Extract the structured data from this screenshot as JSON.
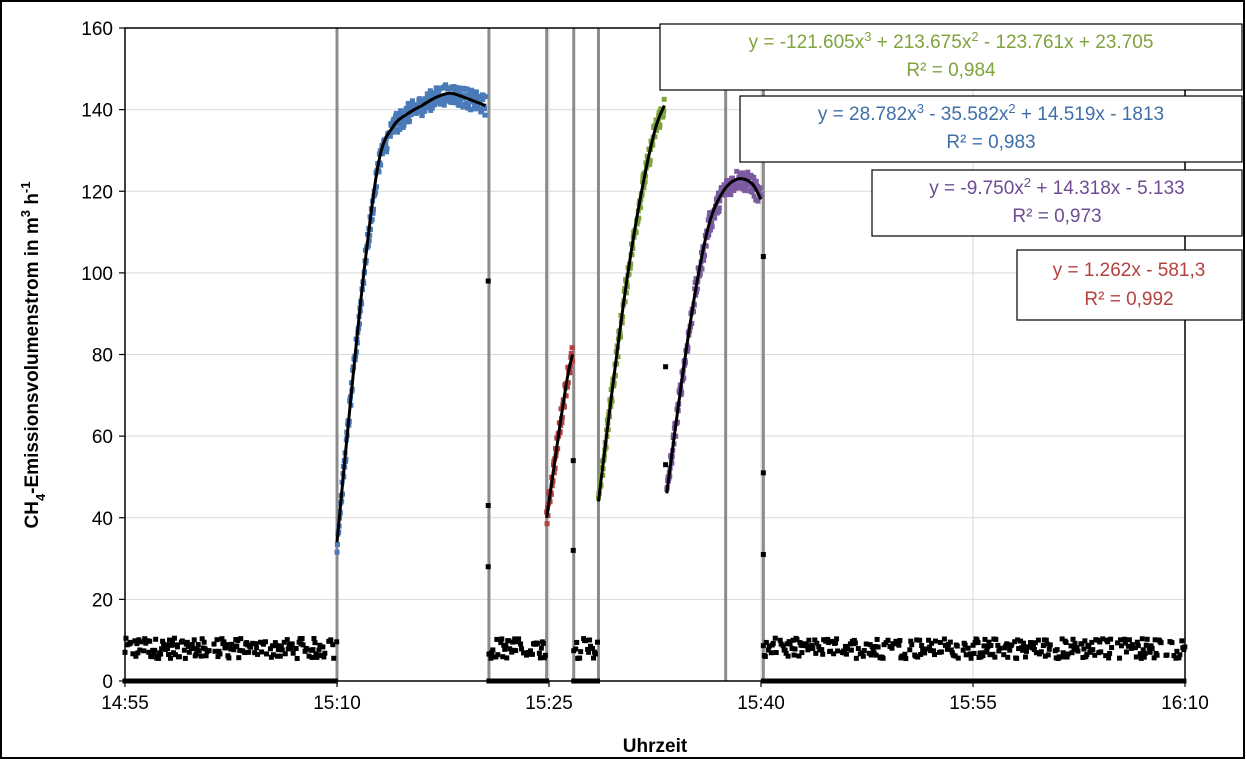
{
  "chart_data": {
    "type": "scatter",
    "title": "",
    "xlabel": "Uhrzeit",
    "ylabel_main": "CH",
    "ylabel_sub": "4",
    "ylabel_rest": "-Emissionsvolumenstrom in m",
    "ylabel_sup1": "3",
    "ylabel_h": " h",
    "ylabel_sup2": "-1",
    "x_range": [
      "14:55",
      "16:10"
    ],
    "ylim": [
      0,
      160
    ],
    "x_ticks": [
      "14:55",
      "15:10",
      "15:25",
      "15:40",
      "15:55",
      "16:10"
    ],
    "y_ticks": [
      0,
      20,
      40,
      60,
      80,
      100,
      120,
      140,
      160
    ],
    "grid": true,
    "legend": "none",
    "vertical_markers": [
      "15:10",
      "15:20:45",
      "15:24:50",
      "15:26:45",
      "15:28:30",
      "15:37:30",
      "15:40:10"
    ],
    "baseline_segments": [
      {
        "from": "14:55",
        "to": "15:10",
        "level": 8
      },
      {
        "from": "15:20:45",
        "to": "15:24:50",
        "level": 8
      },
      {
        "from": "15:26:45",
        "to": "15:28:30",
        "level": 8
      },
      {
        "from": "15:40:10",
        "to": "16:10",
        "level": 8
      }
    ],
    "series": [
      {
        "color": "#4a7ab8",
        "range": [
          "15:10",
          "15:20:40"
        ],
        "points": [
          [
            "15:10",
            34
          ],
          [
            "15:11",
            70
          ],
          [
            "15:12",
            103
          ],
          [
            "15:13",
            128
          ],
          [
            "15:14",
            136
          ],
          [
            "15:15",
            139
          ],
          [
            "15:16",
            141
          ],
          [
            "15:17",
            143
          ],
          [
            "15:18",
            144
          ],
          [
            "15:19",
            143
          ],
          [
            "15:20:30",
            141
          ]
        ]
      },
      {
        "color": "#b5403e",
        "range": [
          "15:24:50",
          "15:26:40"
        ],
        "points": [
          [
            "15:24:50",
            40
          ],
          [
            "15:25:20",
            52
          ],
          [
            "15:25:50",
            64
          ],
          [
            "15:26:20",
            75
          ],
          [
            "15:26:40",
            80
          ]
        ]
      },
      {
        "color": "#7fa33d",
        "range": [
          "15:28:30",
          "15:33:10"
        ],
        "points": [
          [
            "15:28:30",
            44
          ],
          [
            "15:29:30",
            72
          ],
          [
            "15:30:30",
            98
          ],
          [
            "15:31:30",
            119
          ],
          [
            "15:32:30",
            135
          ],
          [
            "15:33:10",
            141
          ]
        ]
      },
      {
        "color": "#7b5aa0",
        "range": [
          "15:33:20",
          "15:40:10"
        ],
        "points": [
          [
            "15:33:20",
            46
          ],
          [
            "15:34:20",
            72
          ],
          [
            "15:35:20",
            95
          ],
          [
            "15:36:20",
            112
          ],
          [
            "15:37:20",
            120
          ],
          [
            "15:38:20",
            123
          ],
          [
            "15:39:20",
            122
          ],
          [
            "15:40:00",
            118
          ]
        ]
      }
    ],
    "annotations": [
      {
        "eq": [
          "y = -121.605x",
          "3",
          " + 213.675x",
          "2",
          " - 123.761x + 23.705"
        ],
        "r2": "R² = 0,984",
        "color": "#7fa33d"
      },
      {
        "eq": [
          "y = 28.782x",
          "3",
          " - 35.582x",
          "2",
          " + 14.519x - 1813",
          "",
          ""
        ],
        "r2": "R² = 0,983",
        "color": "#3f6fa8"
      },
      {
        "eq": [
          "y = -9.750x",
          "2",
          " + 14.318x - 5.133",
          "",
          ""
        ],
        "r2": "R² = 0,973",
        "color": "#6d4c93"
      },
      {
        "eq": [
          "y = 1.262x - 581,3",
          "",
          "",
          "",
          ""
        ],
        "r2": "R² = 0,992",
        "color": "#b5403e"
      }
    ]
  }
}
